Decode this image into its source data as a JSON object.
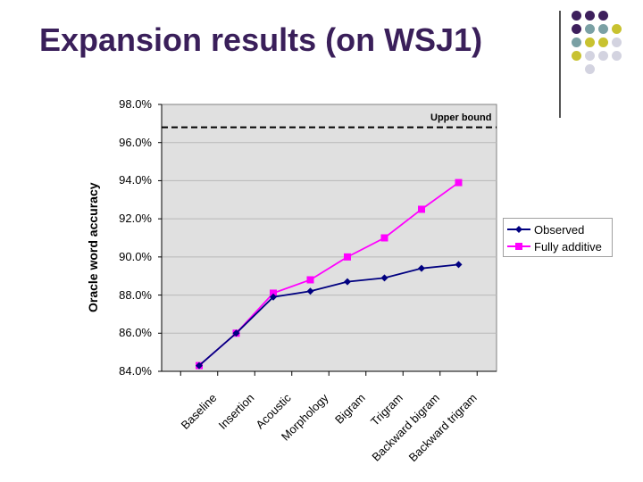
{
  "slide": {
    "title": "Expansion results (on WSJ1)"
  },
  "colors": {
    "title": "#3a1f5a",
    "observed": "#000080",
    "fully_additive": "#ff00ff",
    "plot_bg": "#e0e0e0",
    "deco_purple": "#3d1f5c",
    "deco_teal": "#7aa0a4",
    "deco_olive": "#c8c230",
    "deco_lavender": "#d3d3e0"
  },
  "chart_data": {
    "type": "line",
    "categories": [
      "Baseline",
      "Insertion",
      "Acoustic",
      "Morphology",
      "Bigram",
      "Trigram",
      "Backward bigram",
      "Backward trigram"
    ],
    "series": [
      {
        "name": "Observed",
        "values": [
          84.3,
          86.0,
          87.9,
          88.2,
          88.7,
          88.9,
          89.4,
          89.6
        ]
      },
      {
        "name": "Fully additive",
        "values": [
          84.3,
          86.0,
          88.1,
          88.8,
          90.0,
          91.0,
          92.5,
          93.9
        ]
      }
    ],
    "reference_line": {
      "label": "Upper bound",
      "value": 96.8
    },
    "ylabel": "Oracle word accuracy",
    "xlabel": "",
    "ylim": [
      84.0,
      98.0
    ],
    "yticks": [
      "84.0%",
      "86.0%",
      "88.0%",
      "90.0%",
      "92.0%",
      "94.0%",
      "96.0%",
      "98.0%"
    ],
    "grid": true,
    "legend": "right"
  }
}
